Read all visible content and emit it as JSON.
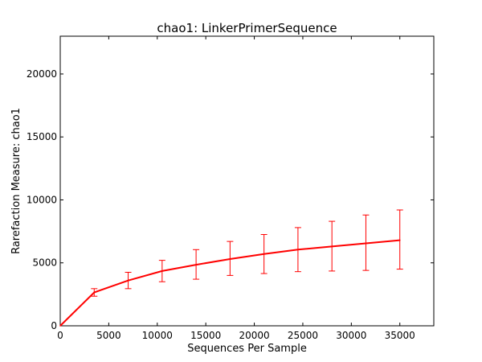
{
  "chart_data": {
    "type": "line",
    "title": "chao1: LinkerPrimerSequence",
    "xlabel": "Sequences Per Sample",
    "ylabel": "Rarefaction Measure: chao1",
    "xlim": [
      0,
      38500
    ],
    "ylim": [
      0,
      23000
    ],
    "xticks": [
      0,
      5000,
      10000,
      15000,
      20000,
      25000,
      30000,
      35000
    ],
    "yticks": [
      0,
      5000,
      10000,
      15000,
      20000
    ],
    "grid": false,
    "series": [
      {
        "color": "#ff0000",
        "x": [
          0,
          3500,
          7000,
          10500,
          14000,
          17500,
          21000,
          24500,
          28000,
          31500,
          35000
        ],
        "y": [
          0,
          2650,
          3600,
          4350,
          4850,
          5300,
          5700,
          6050,
          6300,
          6550,
          6800
        ],
        "err_low": [
          0,
          2350,
          2950,
          3500,
          3700,
          4000,
          4150,
          4300,
          4350,
          4400,
          4500
        ],
        "err_high": [
          0,
          2950,
          4250,
          5200,
          6050,
          6700,
          7250,
          7800,
          8300,
          8800,
          9200
        ]
      }
    ]
  }
}
